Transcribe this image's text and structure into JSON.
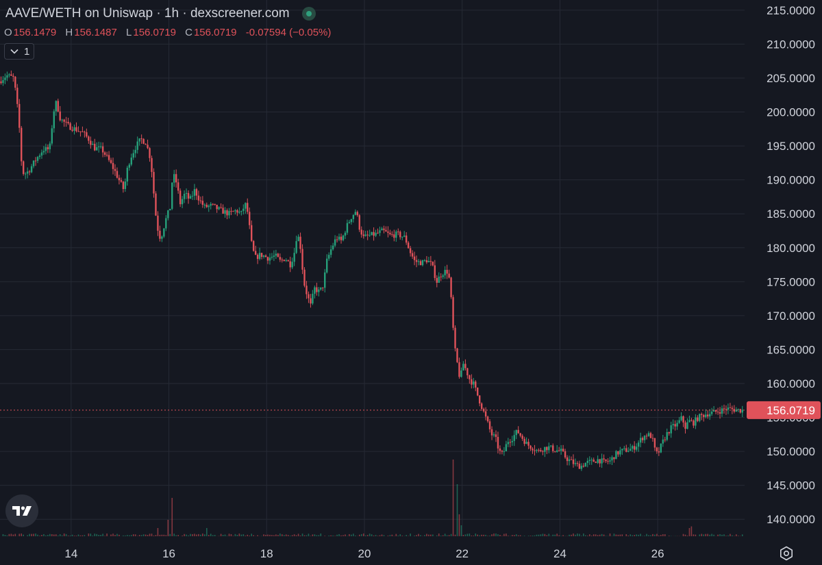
{
  "header": {
    "title": "AAVE/WETH on Uniswap · 1h · dexscreener.com",
    "ohlc": {
      "o_label": "O",
      "o": "156.1479",
      "h_label": "H",
      "h": "156.1487",
      "l_label": "L",
      "l": "156.0719",
      "c_label": "C",
      "c": "156.0719",
      "change": "-0.07594 (−0.05%)"
    },
    "series_count": "1"
  },
  "colors": {
    "background": "#151821",
    "up": "#26a17b",
    "down": "#e0525a",
    "grid": "#262a35",
    "text": "#d1d4dc"
  },
  "chart_data": {
    "type": "candlestick",
    "title": "AAVE/WETH on Uniswap · 1h · dexscreener.com",
    "xlabel": "",
    "ylabel": "",
    "ylim": [
      137.5,
      216.5
    ],
    "y_ticks": [
      "140.0000",
      "145.0000",
      "150.0000",
      "155.0000",
      "160.0000",
      "165.0000",
      "170.0000",
      "175.0000",
      "180.0000",
      "185.0000",
      "190.0000",
      "195.0000",
      "200.0000",
      "205.0000",
      "210.0000",
      "215.0000"
    ],
    "y_tick_values": [
      140,
      145,
      150,
      155,
      160,
      165,
      170,
      175,
      180,
      185,
      190,
      195,
      200,
      205,
      210,
      215
    ],
    "x_ticks": [
      "14",
      "16",
      "18",
      "20",
      "22",
      "24",
      "26"
    ],
    "x_tick_days": [
      14,
      16,
      18,
      20,
      22,
      24,
      26
    ],
    "x_range_days": [
      12.545,
      27.778
    ],
    "last_price": "156.0719",
    "last_price_value": 156.0719,
    "grid": true,
    "price_path": [
      [
        12.55,
        204.5
      ],
      [
        12.7,
        205.4
      ],
      [
        12.85,
        205.0
      ],
      [
        12.95,
        199.0
      ],
      [
        13.0,
        193.0
      ],
      [
        13.05,
        190.8
      ],
      [
        13.15,
        191.3
      ],
      [
        13.3,
        193.0
      ],
      [
        13.45,
        194.5
      ],
      [
        13.58,
        194.5
      ],
      [
        13.66,
        200.0
      ],
      [
        13.72,
        201.5
      ],
      [
        13.8,
        199.0
      ],
      [
        13.95,
        198.0
      ],
      [
        14.1,
        197.5
      ],
      [
        14.25,
        197.0
      ],
      [
        14.38,
        196.0
      ],
      [
        14.5,
        194.7
      ],
      [
        14.65,
        194.5
      ],
      [
        14.78,
        193.0
      ],
      [
        14.9,
        191.5
      ],
      [
        15.0,
        190.0
      ],
      [
        15.1,
        188.5
      ],
      [
        15.18,
        192.0
      ],
      [
        15.25,
        193.5
      ],
      [
        15.35,
        195.0
      ],
      [
        15.45,
        196.0
      ],
      [
        15.55,
        195.5
      ],
      [
        15.65,
        193.0
      ],
      [
        15.75,
        185.0
      ],
      [
        15.82,
        181.5
      ],
      [
        15.88,
        182.0
      ],
      [
        15.95,
        184.0
      ],
      [
        16.05,
        186.0
      ],
      [
        16.1,
        191.0
      ],
      [
        16.18,
        189.5
      ],
      [
        16.25,
        186.5
      ],
      [
        16.35,
        188.0
      ],
      [
        16.45,
        187.0
      ],
      [
        16.55,
        188.5
      ],
      [
        16.65,
        187.0
      ],
      [
        16.75,
        186.0
      ],
      [
        16.9,
        186.2
      ],
      [
        17.05,
        185.6
      ],
      [
        17.25,
        185.0
      ],
      [
        17.4,
        185.5
      ],
      [
        17.5,
        185.0
      ],
      [
        17.58,
        186.5
      ],
      [
        17.64,
        185.0
      ],
      [
        17.7,
        181.0
      ],
      [
        17.78,
        178.5
      ],
      [
        17.9,
        179.0
      ],
      [
        18.05,
        178.5
      ],
      [
        18.2,
        178.8
      ],
      [
        18.3,
        178.0
      ],
      [
        18.4,
        178.5
      ],
      [
        18.5,
        177.5
      ],
      [
        18.58,
        179.0
      ],
      [
        18.64,
        182.0
      ],
      [
        18.7,
        181.0
      ],
      [
        18.78,
        175.0
      ],
      [
        18.85,
        173.0
      ],
      [
        18.92,
        171.5
      ],
      [
        19.0,
        174.0
      ],
      [
        19.1,
        173.5
      ],
      [
        19.18,
        174.5
      ],
      [
        19.25,
        178.0
      ],
      [
        19.35,
        180.0
      ],
      [
        19.45,
        181.5
      ],
      [
        19.55,
        181.0
      ],
      [
        19.65,
        183.0
      ],
      [
        19.75,
        184.5
      ],
      [
        19.85,
        185.5
      ],
      [
        19.92,
        183.0
      ],
      [
        20.0,
        181.5
      ],
      [
        20.12,
        181.8
      ],
      [
        20.25,
        182.0
      ],
      [
        20.4,
        182.5
      ],
      [
        20.55,
        181.8
      ],
      [
        20.7,
        182.0
      ],
      [
        20.85,
        181.5
      ],
      [
        20.95,
        179.5
      ],
      [
        21.05,
        178.0
      ],
      [
        21.2,
        177.8
      ],
      [
        21.3,
        178.2
      ],
      [
        21.4,
        177.5
      ],
      [
        21.5,
        175.0
      ],
      [
        21.58,
        176.0
      ],
      [
        21.66,
        176.5
      ],
      [
        21.74,
        176.5
      ],
      [
        21.8,
        172.0
      ],
      [
        21.86,
        165.5
      ],
      [
        21.92,
        163.0
      ],
      [
        21.98,
        160.5
      ],
      [
        22.04,
        163.0
      ],
      [
        22.1,
        162.0
      ],
      [
        22.18,
        160.5
      ],
      [
        22.25,
        160.0
      ],
      [
        22.35,
        158.0
      ],
      [
        22.45,
        156.0
      ],
      [
        22.55,
        154.0
      ],
      [
        22.62,
        152.5
      ],
      [
        22.7,
        152.0
      ],
      [
        22.78,
        150.0
      ],
      [
        22.85,
        149.5
      ],
      [
        22.95,
        151.5
      ],
      [
        23.05,
        152.0
      ],
      [
        23.15,
        153.0
      ],
      [
        23.25,
        152.0
      ],
      [
        23.35,
        151.0
      ],
      [
        23.48,
        150.5
      ],
      [
        23.58,
        150.0
      ],
      [
        23.7,
        150.5
      ],
      [
        23.8,
        150.6
      ],
      [
        23.92,
        150.2
      ],
      [
        24.05,
        150.0
      ],
      [
        24.15,
        149.0
      ],
      [
        24.25,
        148.5
      ],
      [
        24.35,
        148.0
      ],
      [
        24.45,
        147.8
      ],
      [
        24.55,
        148.3
      ],
      [
        24.68,
        148.5
      ],
      [
        24.8,
        148.8
      ],
      [
        24.92,
        148.4
      ],
      [
        25.05,
        148.6
      ],
      [
        25.15,
        149.5
      ],
      [
        25.25,
        150.0
      ],
      [
        25.38,
        150.2
      ],
      [
        25.5,
        150.4
      ],
      [
        25.6,
        151.0
      ],
      [
        25.7,
        152.0
      ],
      [
        25.8,
        152.5
      ],
      [
        25.9,
        152.2
      ],
      [
        25.97,
        150.0
      ],
      [
        26.02,
        149.5
      ],
      [
        26.1,
        151.0
      ],
      [
        26.2,
        152.5
      ],
      [
        26.3,
        153.5
      ],
      [
        26.42,
        154.0
      ],
      [
        26.52,
        155.0
      ],
      [
        26.58,
        153.5
      ],
      [
        26.66,
        154.5
      ],
      [
        26.75,
        154.2
      ],
      [
        26.85,
        155.0
      ],
      [
        27.0,
        155.5
      ],
      [
        27.15,
        155.7
      ],
      [
        27.3,
        156.0
      ],
      [
        27.42,
        156.3
      ],
      [
        27.55,
        156.2
      ],
      [
        27.65,
        156.1
      ],
      [
        27.75,
        156.07
      ]
    ],
    "volume_spikes": [
      [
        15.78,
        1.5
      ],
      [
        16.0,
        3.0
      ],
      [
        16.07,
        7.0
      ],
      [
        16.78,
        1.5
      ],
      [
        21.82,
        14.0
      ],
      [
        21.88,
        9.5
      ],
      [
        21.94,
        4.0
      ],
      [
        22.0,
        2.0
      ],
      [
        26.65,
        1.5
      ],
      [
        26.7,
        1.8
      ]
    ]
  }
}
